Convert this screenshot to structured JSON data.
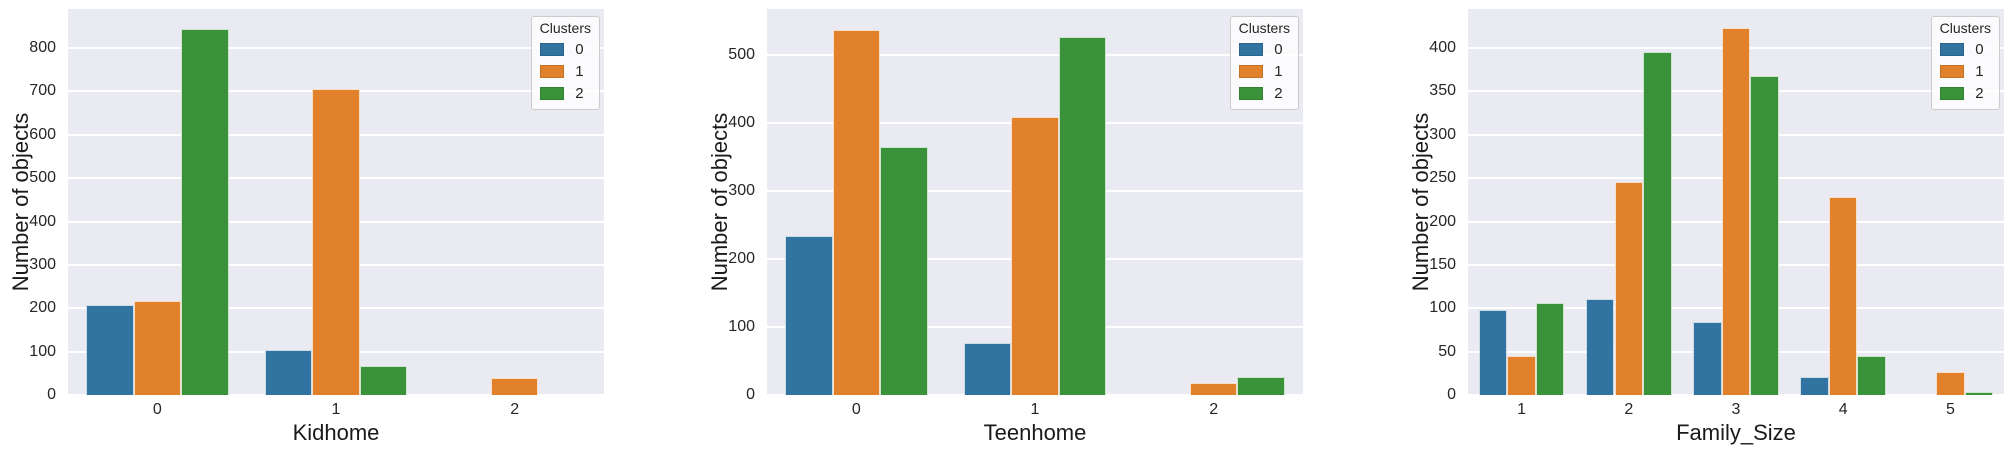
{
  "figure": {
    "background": "#ffffff",
    "axes_background": "#eaeaf2",
    "grid_color": "#ffffff",
    "tick_color": "#262626",
    "label_color": "#1a1a1a"
  },
  "legend": {
    "title": "Clusters",
    "entries": [
      {
        "label": "0",
        "color": "#3274a1"
      },
      {
        "label": "1",
        "color": "#e1812c"
      },
      {
        "label": "2",
        "color": "#3a923a"
      }
    ]
  },
  "chart_data": [
    {
      "type": "bar",
      "title": "",
      "xlabel": "Kidhome",
      "ylabel": "Number of objects",
      "categories": [
        "0",
        "1",
        "2"
      ],
      "series": [
        {
          "name": "0",
          "color": "#3274a1",
          "values": [
            207,
            103,
            0
          ]
        },
        {
          "name": "1",
          "color": "#e1812c",
          "values": [
            217,
            706,
            40
          ]
        },
        {
          "name": "2",
          "color": "#3a923a",
          "values": [
            845,
            67,
            0
          ]
        }
      ],
      "ylim": [
        0,
        890
      ],
      "yticks": [
        0,
        100,
        200,
        300,
        400,
        500,
        600,
        700,
        800
      ],
      "grid": "horizontal",
      "legend_position": "upper right"
    },
    {
      "type": "bar",
      "title": "",
      "xlabel": "Teenhome",
      "ylabel": "Number of objects",
      "categories": [
        "0",
        "1",
        "2"
      ],
      "series": [
        {
          "name": "0",
          "color": "#3274a1",
          "values": [
            234,
            77,
            0
          ]
        },
        {
          "name": "1",
          "color": "#e1812c",
          "values": [
            537,
            409,
            18
          ]
        },
        {
          "name": "2",
          "color": "#3a923a",
          "values": [
            365,
            527,
            27
          ]
        }
      ],
      "ylim": [
        0,
        568
      ],
      "yticks": [
        0,
        100,
        200,
        300,
        400,
        500
      ],
      "grid": "horizontal",
      "legend_position": "upper right"
    },
    {
      "type": "bar",
      "title": "",
      "xlabel": "Family_Size",
      "ylabel": "Number of objects",
      "categories": [
        "1",
        "2",
        "3",
        "4",
        "5"
      ],
      "series": [
        {
          "name": "0",
          "color": "#3274a1",
          "values": [
            98,
            111,
            84,
            21,
            0
          ]
        },
        {
          "name": "1",
          "color": "#e1812c",
          "values": [
            45,
            245,
            423,
            228,
            27
          ]
        },
        {
          "name": "2",
          "color": "#3a923a",
          "values": [
            106,
            395,
            368,
            45,
            3
          ]
        }
      ],
      "ylim": [
        0,
        445
      ],
      "yticks": [
        0,
        50,
        100,
        150,
        200,
        250,
        300,
        350,
        400
      ],
      "grid": "horizontal",
      "legend_position": "upper right"
    }
  ]
}
